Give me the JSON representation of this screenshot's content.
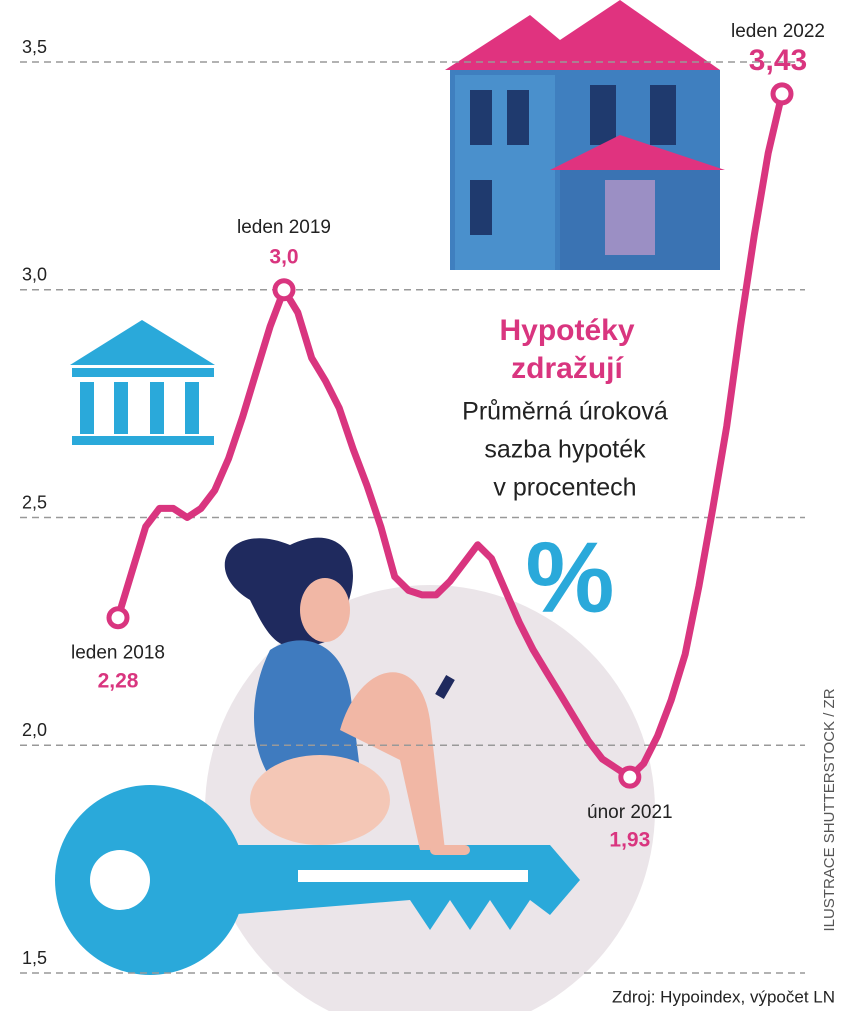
{
  "chart_data": {
    "type": "line",
    "title": [
      "Hypotéky",
      "zdražují"
    ],
    "subtitle": [
      "Průměrná úroková",
      "sazba hypoték",
      "v procentech"
    ],
    "symbol": "%",
    "source": "Zdroj: Hypoindex, výpočet LN",
    "credit": "ILUSTRACE SHUTTERSTOCK / ZR",
    "color": "#d9357f",
    "categories": [
      "leden 2018",
      null,
      null,
      null,
      null,
      null,
      null,
      null,
      null,
      null,
      null,
      null,
      "leden 2019",
      null,
      null,
      null,
      null,
      null,
      null,
      null,
      null,
      null,
      null,
      null,
      null,
      null,
      null,
      null,
      null,
      null,
      null,
      null,
      null,
      null,
      null,
      null,
      null,
      "únor 2021",
      null,
      null,
      null,
      null,
      null,
      null,
      null,
      null,
      null,
      null,
      "leden 2022"
    ],
    "values": [
      2.28,
      2.38,
      2.48,
      2.52,
      2.52,
      2.5,
      2.52,
      2.56,
      2.63,
      2.72,
      2.82,
      2.92,
      3.0,
      2.95,
      2.85,
      2.8,
      2.74,
      2.65,
      2.57,
      2.48,
      2.37,
      2.34,
      2.33,
      2.33,
      2.36,
      2.4,
      2.44,
      2.41,
      2.34,
      2.27,
      2.21,
      2.16,
      2.11,
      2.06,
      2.01,
      1.97,
      1.95,
      1.93,
      1.96,
      2.02,
      2.1,
      2.2,
      2.35,
      2.52,
      2.7,
      2.92,
      3.12,
      3.3,
      3.43
    ],
    "value_labels": [
      "2,28",
      null,
      null,
      null,
      null,
      null,
      null,
      null,
      null,
      null,
      null,
      null,
      "3,0",
      null,
      null,
      null,
      null,
      null,
      null,
      null,
      null,
      null,
      null,
      null,
      null,
      null,
      null,
      null,
      null,
      null,
      null,
      null,
      null,
      null,
      null,
      null,
      null,
      "1,93",
      null,
      null,
      null,
      null,
      null,
      null,
      null,
      null,
      null,
      null,
      "3,43"
    ],
    "ylim": [
      1.5,
      3.5
    ],
    "yticks": [
      {
        "value": 1.5,
        "label": "1,5"
      },
      {
        "value": 2.0,
        "label": "2,0"
      },
      {
        "value": 2.5,
        "label": "2,5"
      },
      {
        "value": 3.0,
        "label": "3,0"
      },
      {
        "value": 3.5,
        "label": "3,5"
      }
    ],
    "grid": true
  }
}
